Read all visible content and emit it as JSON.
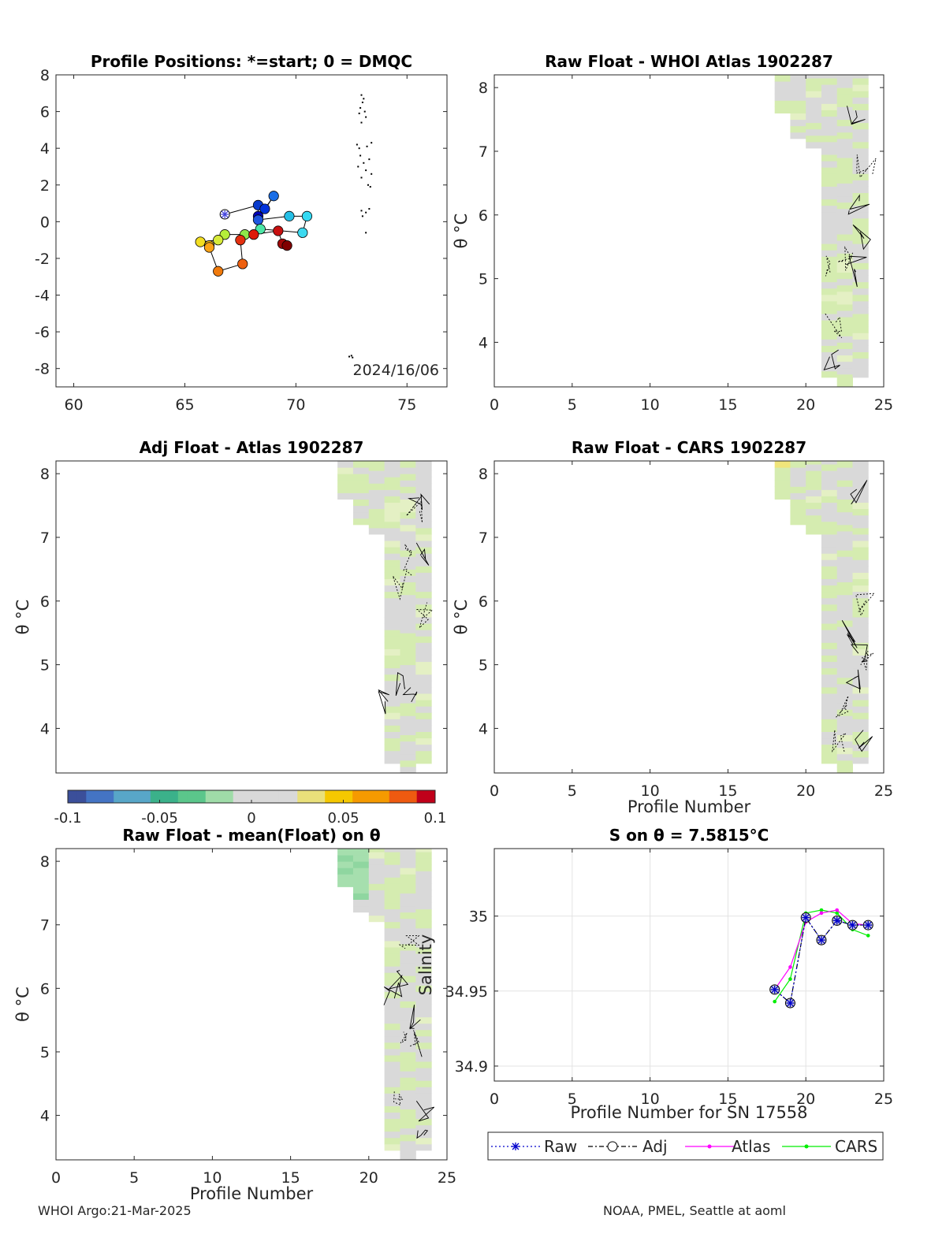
{
  "footer": {
    "left": "WHOI Argo:21-Mar-2025",
    "right": "NOAA, PMEL, Seattle at aoml"
  },
  "colors": {
    "neutral_gray": "#d9d9d9",
    "pale_green": "#d5ecb0",
    "axis": "#262626",
    "raw_series": "#0000cc",
    "atlas_series": "#ff00ff",
    "cars_series": "#00ee00"
  },
  "chart_data": [
    {
      "id": "positions",
      "type": "scatter",
      "title": "Profile Positions: *=start; 0 = DMQC",
      "xticks": [
        60,
        65,
        70,
        75
      ],
      "yticks": [
        8,
        6,
        4,
        2,
        0,
        -2,
        -4,
        -6,
        -8
      ],
      "xlim": [
        59.2,
        76.8
      ],
      "ylim": [
        -9,
        8
      ],
      "annotation": "2024/16/06",
      "track": [
        {
          "x": 66.8,
          "y": 0.4,
          "color": "#4444dd",
          "start": true
        },
        {
          "x": 68.3,
          "y": 0.9,
          "color": "#0a3ccc"
        },
        {
          "x": 68.3,
          "y": 0.3,
          "color": "#0000bb"
        },
        {
          "x": 68.6,
          "y": 0.7,
          "color": "#0033dd"
        },
        {
          "x": 69.0,
          "y": 1.4,
          "color": "#1a6ee6"
        },
        {
          "x": 68.3,
          "y": 0.1,
          "color": "#1f57e0"
        },
        {
          "x": 69.7,
          "y": 0.3,
          "color": "#26bfe6"
        },
        {
          "x": 70.5,
          "y": 0.3,
          "color": "#33d9f2"
        },
        {
          "x": 70.3,
          "y": -0.6,
          "color": "#3cd9f0"
        },
        {
          "x": 68.4,
          "y": -0.4,
          "color": "#4ce6a6"
        },
        {
          "x": 67.7,
          "y": -0.7,
          "color": "#8fe84a"
        },
        {
          "x": 66.8,
          "y": -0.7,
          "color": "#b5ee3a"
        },
        {
          "x": 66.5,
          "y": -1.0,
          "color": "#d7ea3a"
        },
        {
          "x": 65.7,
          "y": -1.1,
          "color": "#f2dd22"
        },
        {
          "x": 66.1,
          "y": -1.3,
          "color": "#f7c31d"
        },
        {
          "x": 66.1,
          "y": -1.4,
          "color": "#fba216"
        },
        {
          "x": 66.5,
          "y": -2.7,
          "color": "#f07a0c"
        },
        {
          "x": 67.6,
          "y": -2.3,
          "color": "#ee6010"
        },
        {
          "x": 67.5,
          "y": -1.0,
          "color": "#e43010"
        },
        {
          "x": 68.1,
          "y": -0.7,
          "color": "#dd1a0a"
        },
        {
          "x": 69.2,
          "y": -0.5,
          "color": "#c81010"
        },
        {
          "x": 69.4,
          "y": -1.2,
          "color": "#a00808"
        },
        {
          "x": 69.6,
          "y": -1.3,
          "color": "#800000"
        }
      ],
      "dots": [
        [
          72.95,
          6.9
        ],
        [
          73.05,
          6.7
        ],
        [
          73.0,
          6.5
        ],
        [
          72.9,
          6.2
        ],
        [
          73.1,
          6.0
        ],
        [
          72.85,
          5.9
        ],
        [
          73.15,
          5.7
        ],
        [
          72.95,
          5.4
        ],
        [
          72.75,
          4.2
        ],
        [
          72.85,
          4.0
        ],
        [
          73.2,
          4.1
        ],
        [
          73.4,
          4.3
        ],
        [
          72.9,
          3.6
        ],
        [
          73.3,
          3.4
        ],
        [
          73.05,
          3.2
        ],
        [
          72.8,
          3.0
        ],
        [
          73.15,
          2.8
        ],
        [
          73.4,
          2.6
        ],
        [
          72.95,
          2.4
        ],
        [
          73.25,
          2.0
        ],
        [
          73.35,
          1.9
        ],
        [
          72.95,
          0.6
        ],
        [
          73.15,
          0.5
        ],
        [
          73.3,
          0.7
        ],
        [
          73.0,
          0.3
        ],
        [
          73.15,
          -0.6
        ],
        [
          72.5,
          -7.3
        ],
        [
          72.55,
          -7.4
        ],
        [
          72.4,
          -7.35
        ]
      ]
    },
    {
      "id": "raw_atlas",
      "type": "heatmap",
      "title": "Raw Float - WHOI Atlas  1902287",
      "ylabel": "θ °C",
      "xticks": [
        0,
        5,
        10,
        15,
        20,
        25
      ],
      "yticks": [
        8,
        7,
        6,
        5,
        4
      ],
      "xlim": [
        0,
        25
      ],
      "ylim": [
        3.3,
        8.2
      ]
    },
    {
      "id": "adj_atlas",
      "type": "heatmap",
      "title": "Adj Float - Atlas  1902287",
      "ylabel": "θ °C",
      "xticks": [],
      "yticks": [
        8,
        7,
        6,
        5,
        4
      ],
      "xlim": [
        0,
        25
      ],
      "ylim": [
        3.3,
        8.2
      ]
    },
    {
      "id": "raw_cars",
      "type": "heatmap",
      "title": "Raw Float - CARS  1902287",
      "ylabel": "θ °C",
      "xlabel": "Profile Number",
      "xticks": [
        0,
        5,
        10,
        15,
        20,
        25
      ],
      "yticks": [
        8,
        7,
        6,
        5,
        4
      ],
      "xlim": [
        0,
        25
      ],
      "ylim": [
        3.3,
        8.2
      ]
    },
    {
      "id": "raw_mean",
      "type": "heatmap",
      "title": "Raw Float - mean(Float) on θ",
      "ylabel": "θ °C",
      "xlabel": "Profile Number",
      "xticks": [
        0,
        5,
        10,
        15,
        20,
        25
      ],
      "yticks": [
        8,
        7,
        6,
        5,
        4
      ],
      "xlim": [
        0,
        25
      ],
      "ylim": [
        3.3,
        8.2
      ]
    },
    {
      "id": "colorbar",
      "type": "heatmap",
      "range": [
        -0.1,
        0.1
      ],
      "tick_labels": [
        "-0.1",
        "-0.05",
        "0",
        "0.05",
        "0.1"
      ]
    },
    {
      "id": "salinity",
      "type": "line",
      "title": "S on θ = 7.5815°C",
      "xlabel": "Profile Number for SN 17558",
      "ylabel": "Salinity",
      "xticks": [
        0,
        5,
        10,
        15,
        20,
        25
      ],
      "yticks": [
        34.9,
        34.95,
        35
      ],
      "xlim": [
        0,
        25
      ],
      "ylim": [
        34.89,
        35.045
      ],
      "grid": true,
      "legend_position": "bottom",
      "series": [
        {
          "name": "Raw",
          "x": [
            18,
            19,
            20,
            21,
            22,
            23,
            24
          ],
          "y": [
            34.951,
            34.942,
            34.999,
            34.984,
            34.997,
            34.994,
            34.994
          ]
        },
        {
          "name": "Adj",
          "x": [
            18,
            19,
            20,
            21,
            22,
            23,
            24
          ],
          "y": [
            34.951,
            34.942,
            34.999,
            34.984,
            34.997,
            34.994,
            34.994
          ]
        },
        {
          "name": "Atlas",
          "x": [
            18,
            19,
            20,
            21,
            22,
            23,
            24
          ],
          "y": [
            34.951,
            34.966,
            34.996,
            35.002,
            35.004,
            34.995,
            34.994
          ]
        },
        {
          "name": "CARS",
          "x": [
            18,
            19,
            20,
            21,
            22,
            23,
            24
          ],
          "y": [
            34.943,
            34.958,
            35.002,
            35.004,
            35.002,
            34.991,
            34.987
          ]
        }
      ]
    }
  ]
}
